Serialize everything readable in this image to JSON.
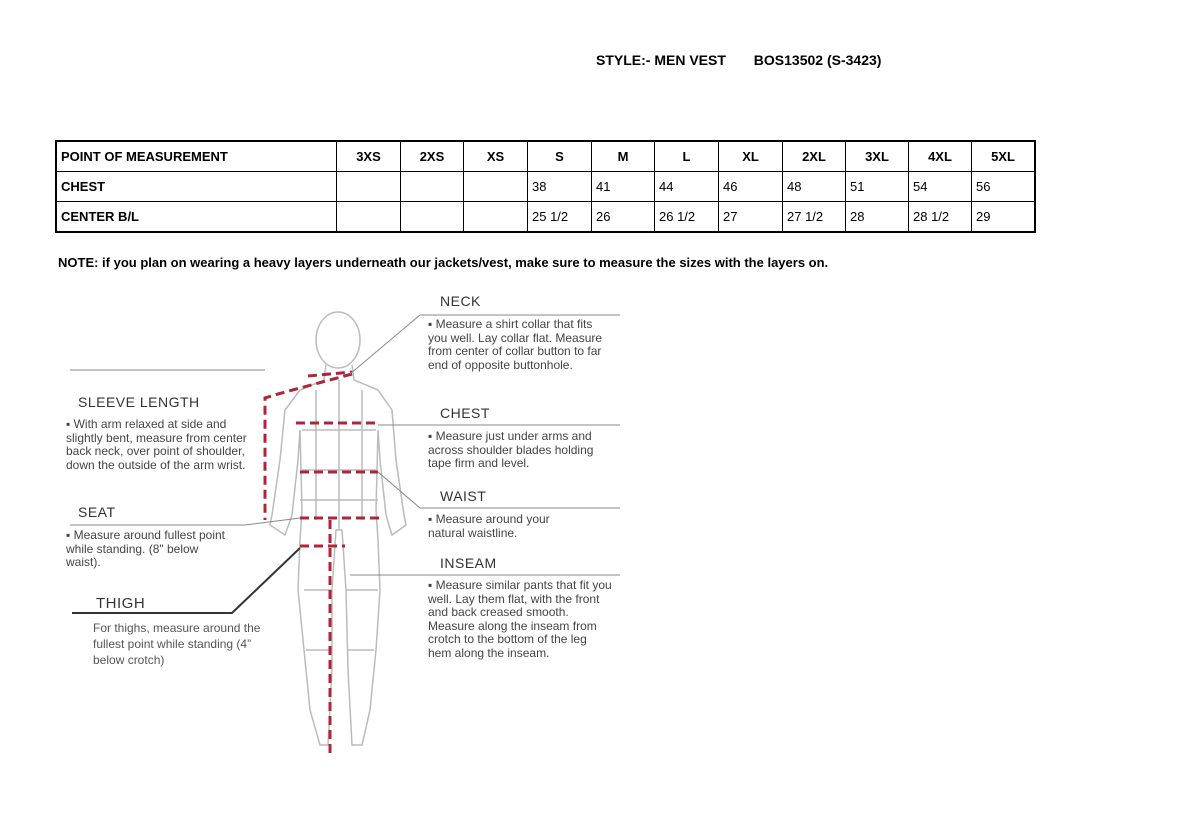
{
  "header": {
    "style_label": "STYLE:- MEN VEST",
    "style_code": "BOS13502 (S-3423)"
  },
  "table": {
    "columns": [
      "POINT OF MEASUREMENT",
      "3XS",
      "2XS",
      "XS",
      "S",
      "M",
      "L",
      "XL",
      "2XL",
      "3XL",
      "4XL",
      "5XL"
    ],
    "rows": [
      {
        "label": "CHEST",
        "values": [
          "",
          "",
          "",
          "38",
          "41",
          "44",
          "46",
          "48",
          "51",
          "54",
          "56"
        ]
      },
      {
        "label": "CENTER B/L",
        "values": [
          "",
          "",
          "",
          "25 1/2",
          "26",
          "26 1/2",
          "27",
          "27 1/2",
          "28",
          "28 1/2",
          "29"
        ]
      }
    ]
  },
  "note": "NOTE: if you plan on wearing a heavy layers underneath our jackets/vest, make sure to measure the sizes with the layers on.",
  "figure": {
    "neck": {
      "title": "NECK",
      "text": "Measure a shirt collar that fits you well. Lay collar flat. Measure from center of collar button to far end of opposite buttonhole."
    },
    "chest": {
      "title": "CHEST",
      "text": "Measure just under arms and across shoulder blades holding tape firm and level."
    },
    "waist": {
      "title": "WAIST",
      "text": "Measure around your natural waistline."
    },
    "inseam": {
      "title": "INSEAM",
      "text": "Measure similar pants that fit you well. Lay them flat, with the front and back creased smooth. Measure along the inseam from crotch to the bottom of the leg hem along the inseam."
    },
    "sleeve": {
      "title": "SLEEVE LENGTH",
      "text": "With arm relaxed at side and slightly bent, measure from center back neck, over point of shoulder, down the outside of the arm wrist."
    },
    "seat": {
      "title": "SEAT",
      "text": "Measure around fullest point while standing. (8\" below waist)."
    },
    "thigh": {
      "title": "THIGH",
      "text": "For thighs, measure around the fullest point while standing (4” below crotch)"
    }
  },
  "colors": {
    "measure_line": "#b0243a",
    "figure_line": "#bbbbbb"
  }
}
